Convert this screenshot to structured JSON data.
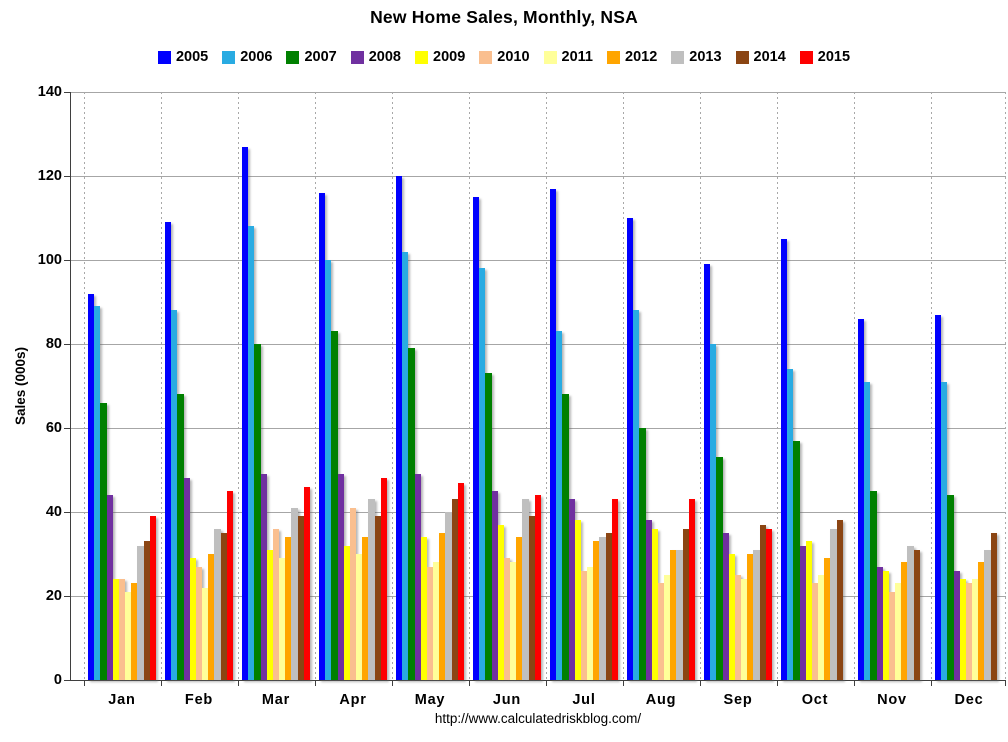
{
  "page": {
    "footer_url": "http://www.calculatedriskblog.com/"
  },
  "chart_data": {
    "type": "bar",
    "title": "New Home Sales, Monthly, NSA",
    "xlabel": "",
    "ylabel": "Sales (000s)",
    "ylim": [
      0,
      140
    ],
    "y_ticks": [
      0,
      20,
      40,
      60,
      80,
      100,
      120,
      140
    ],
    "grid": true,
    "legend_position": "top-center",
    "categories": [
      "Jan",
      "Feb",
      "Mar",
      "Apr",
      "May",
      "Jun",
      "Jul",
      "Aug",
      "Sep",
      "Oct",
      "Nov",
      "Dec"
    ],
    "series": [
      {
        "name": "2005",
        "color": "#0000fe",
        "values": [
          92,
          109,
          127,
          116,
          120,
          115,
          117,
          110,
          99,
          105,
          86,
          87
        ]
      },
      {
        "name": "2006",
        "color": "#29abe2",
        "values": [
          89,
          88,
          108,
          100,
          102,
          98,
          83,
          88,
          80,
          74,
          71,
          71
        ]
      },
      {
        "name": "2007",
        "color": "#008000",
        "values": [
          66,
          68,
          80,
          83,
          79,
          73,
          68,
          60,
          53,
          57,
          45,
          44
        ]
      },
      {
        "name": "2008",
        "color": "#7030a0",
        "values": [
          44,
          48,
          49,
          49,
          49,
          45,
          43,
          38,
          35,
          32,
          27,
          26
        ]
      },
      {
        "name": "2009",
        "color": "#ffff00",
        "values": [
          24,
          29,
          31,
          32,
          34,
          37,
          38,
          36,
          30,
          33,
          26,
          24
        ]
      },
      {
        "name": "2010",
        "color": "#fabf8f",
        "values": [
          24,
          27,
          36,
          41,
          27,
          29,
          26,
          23,
          25,
          23,
          21,
          23
        ]
      },
      {
        "name": "2011",
        "color": "#ffff99",
        "values": [
          21,
          22,
          29,
          30,
          28,
          28,
          27,
          25,
          24,
          25,
          23,
          24
        ]
      },
      {
        "name": "2012",
        "color": "#ffa500",
        "values": [
          23,
          30,
          34,
          34,
          35,
          34,
          33,
          31,
          30,
          29,
          28,
          28
        ]
      },
      {
        "name": "2013",
        "color": "#bfbfbf",
        "values": [
          32,
          36,
          41,
          43,
          40,
          43,
          34,
          31,
          31,
          36,
          32,
          31
        ]
      },
      {
        "name": "2014",
        "color": "#8b4513",
        "values": [
          33,
          35,
          39,
          39,
          43,
          39,
          35,
          36,
          37,
          38,
          31,
          35
        ]
      },
      {
        "name": "2015",
        "color": "#fe0000",
        "values": [
          39,
          45,
          46,
          48,
          47,
          44,
          43,
          43,
          36,
          null,
          null,
          null
        ]
      }
    ]
  }
}
